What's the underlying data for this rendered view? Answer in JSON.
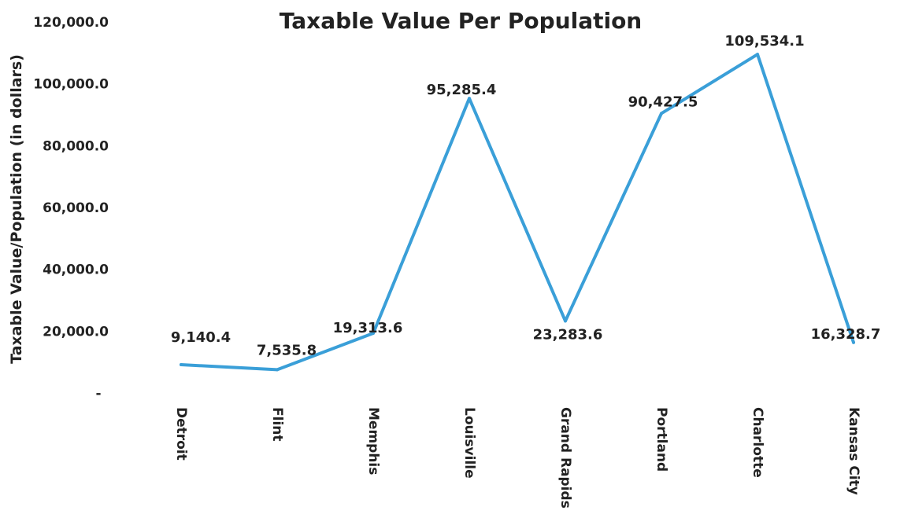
{
  "chart_data": {
    "type": "line",
    "title": "Taxable Value Per Population",
    "xlabel": "",
    "ylabel": "Taxable Value/Population (in dollars)",
    "categories": [
      "Detroit",
      "Flint",
      "Memphis",
      "Louisville",
      "Grand Rapids",
      "Portland",
      "Charlotte",
      "Kansas City"
    ],
    "values": [
      9140.4,
      7535.8,
      19313.6,
      95285.4,
      23283.6,
      90427.5,
      109534.1,
      16328.7
    ],
    "data_labels": [
      "9,140.4",
      "7,535.8",
      "19,313.6",
      "95,285.4",
      "23,283.6",
      "90,427.5",
      "109,534.1",
      "16,328.7"
    ],
    "y_ticks": [
      "-",
      "20,000.0",
      "40,000.0",
      "60,000.0",
      "80,000.0",
      "100,000.0",
      "120,000.0"
    ],
    "ylim": [
      0,
      120000
    ],
    "grid": false,
    "legend": "none",
    "line_color": "#3a9fd8"
  }
}
